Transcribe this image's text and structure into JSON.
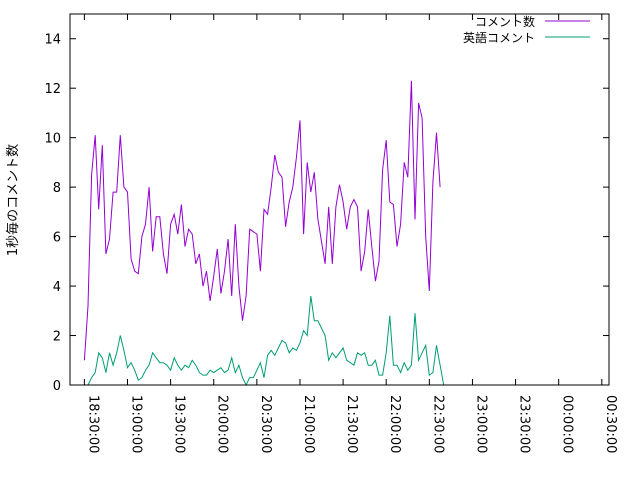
{
  "chart_data": {
    "type": "line",
    "title": "",
    "xlabel": "",
    "ylabel": "1秒毎のコメント数",
    "ylim": [
      0,
      15
    ],
    "yticks": [
      0,
      2,
      4,
      6,
      8,
      10,
      12,
      14
    ],
    "xlim": [
      "18:20:00",
      "00:35:00"
    ],
    "xticks": [
      "18:30:00",
      "19:00:00",
      "19:30:00",
      "20:00:00",
      "20:30:00",
      "21:00:00",
      "21:30:00",
      "22:00:00",
      "22:30:00",
      "23:00:00",
      "23:30:00",
      "00:00:00",
      "00:30:00"
    ],
    "legend_position": "top-right",
    "grid": false,
    "series": [
      {
        "name": "コメント数",
        "color": "#9400d3",
        "x_start": "18:30:00",
        "x_step_seconds": 150,
        "values": [
          1.0,
          3.2,
          8.5,
          10.1,
          7.1,
          9.7,
          5.3,
          5.9,
          7.8,
          7.8,
          10.1,
          8.0,
          7.8,
          5.1,
          4.6,
          4.5,
          6.0,
          6.5,
          8.0,
          5.4,
          6.8,
          6.8,
          5.3,
          4.5,
          6.5,
          6.9,
          6.1,
          7.3,
          5.6,
          6.3,
          6.1,
          4.9,
          5.3,
          4.0,
          4.6,
          3.4,
          4.4,
          5.5,
          3.7,
          4.6,
          5.9,
          3.6,
          6.5,
          4.0,
          2.6,
          3.6,
          6.3,
          6.2,
          6.1,
          4.6,
          7.1,
          6.9,
          8.0,
          9.3,
          8.6,
          8.4,
          6.4,
          7.4,
          8.0,
          9.2,
          10.7,
          6.1,
          9.0,
          7.8,
          8.6,
          6.7,
          5.8,
          4.9,
          7.2,
          4.9,
          7.2,
          8.1,
          7.4,
          6.3,
          7.2,
          7.5,
          7.2,
          4.6,
          5.4,
          7.1,
          5.6,
          4.2,
          5.0,
          8.7,
          9.9,
          7.4,
          7.3,
          5.6,
          6.5,
          9.0,
          8.4,
          12.3,
          6.7,
          11.4,
          10.8,
          6.0,
          3.8,
          8.2,
          10.2,
          8.0
        ]
      },
      {
        "name": "英語コメント",
        "color": "#009e73",
        "x_start": "18:30:00",
        "x_step_seconds": 150,
        "values": [
          null,
          0.0,
          0.3,
          0.5,
          1.3,
          1.1,
          0.5,
          1.3,
          0.8,
          1.3,
          2.0,
          1.4,
          0.7,
          0.9,
          0.6,
          0.2,
          0.3,
          0.6,
          0.8,
          1.3,
          1.1,
          0.9,
          0.9,
          0.8,
          0.6,
          1.1,
          0.8,
          0.6,
          0.8,
          0.7,
          1.0,
          0.8,
          0.5,
          0.4,
          0.4,
          0.6,
          0.5,
          0.6,
          0.7,
          0.5,
          0.6,
          1.1,
          0.5,
          0.8,
          0.3,
          0.0,
          0.3,
          0.3,
          0.6,
          0.9,
          0.3,
          1.2,
          1.4,
          1.2,
          1.5,
          1.8,
          1.7,
          1.3,
          1.5,
          1.4,
          1.7,
          2.2,
          2.0,
          3.6,
          2.6,
          2.6,
          2.3,
          2.0,
          1.0,
          1.3,
          1.1,
          1.3,
          1.5,
          1.0,
          0.9,
          0.8,
          1.3,
          1.2,
          1.3,
          0.8,
          0.8,
          1.0,
          0.4,
          0.4,
          1.3,
          2.8,
          0.8,
          0.8,
          0.5,
          0.9,
          0.6,
          0.8,
          2.9,
          1.0,
          1.3,
          1.6,
          0.4,
          0.5,
          1.6,
          0.8,
          0.0
        ]
      }
    ]
  }
}
